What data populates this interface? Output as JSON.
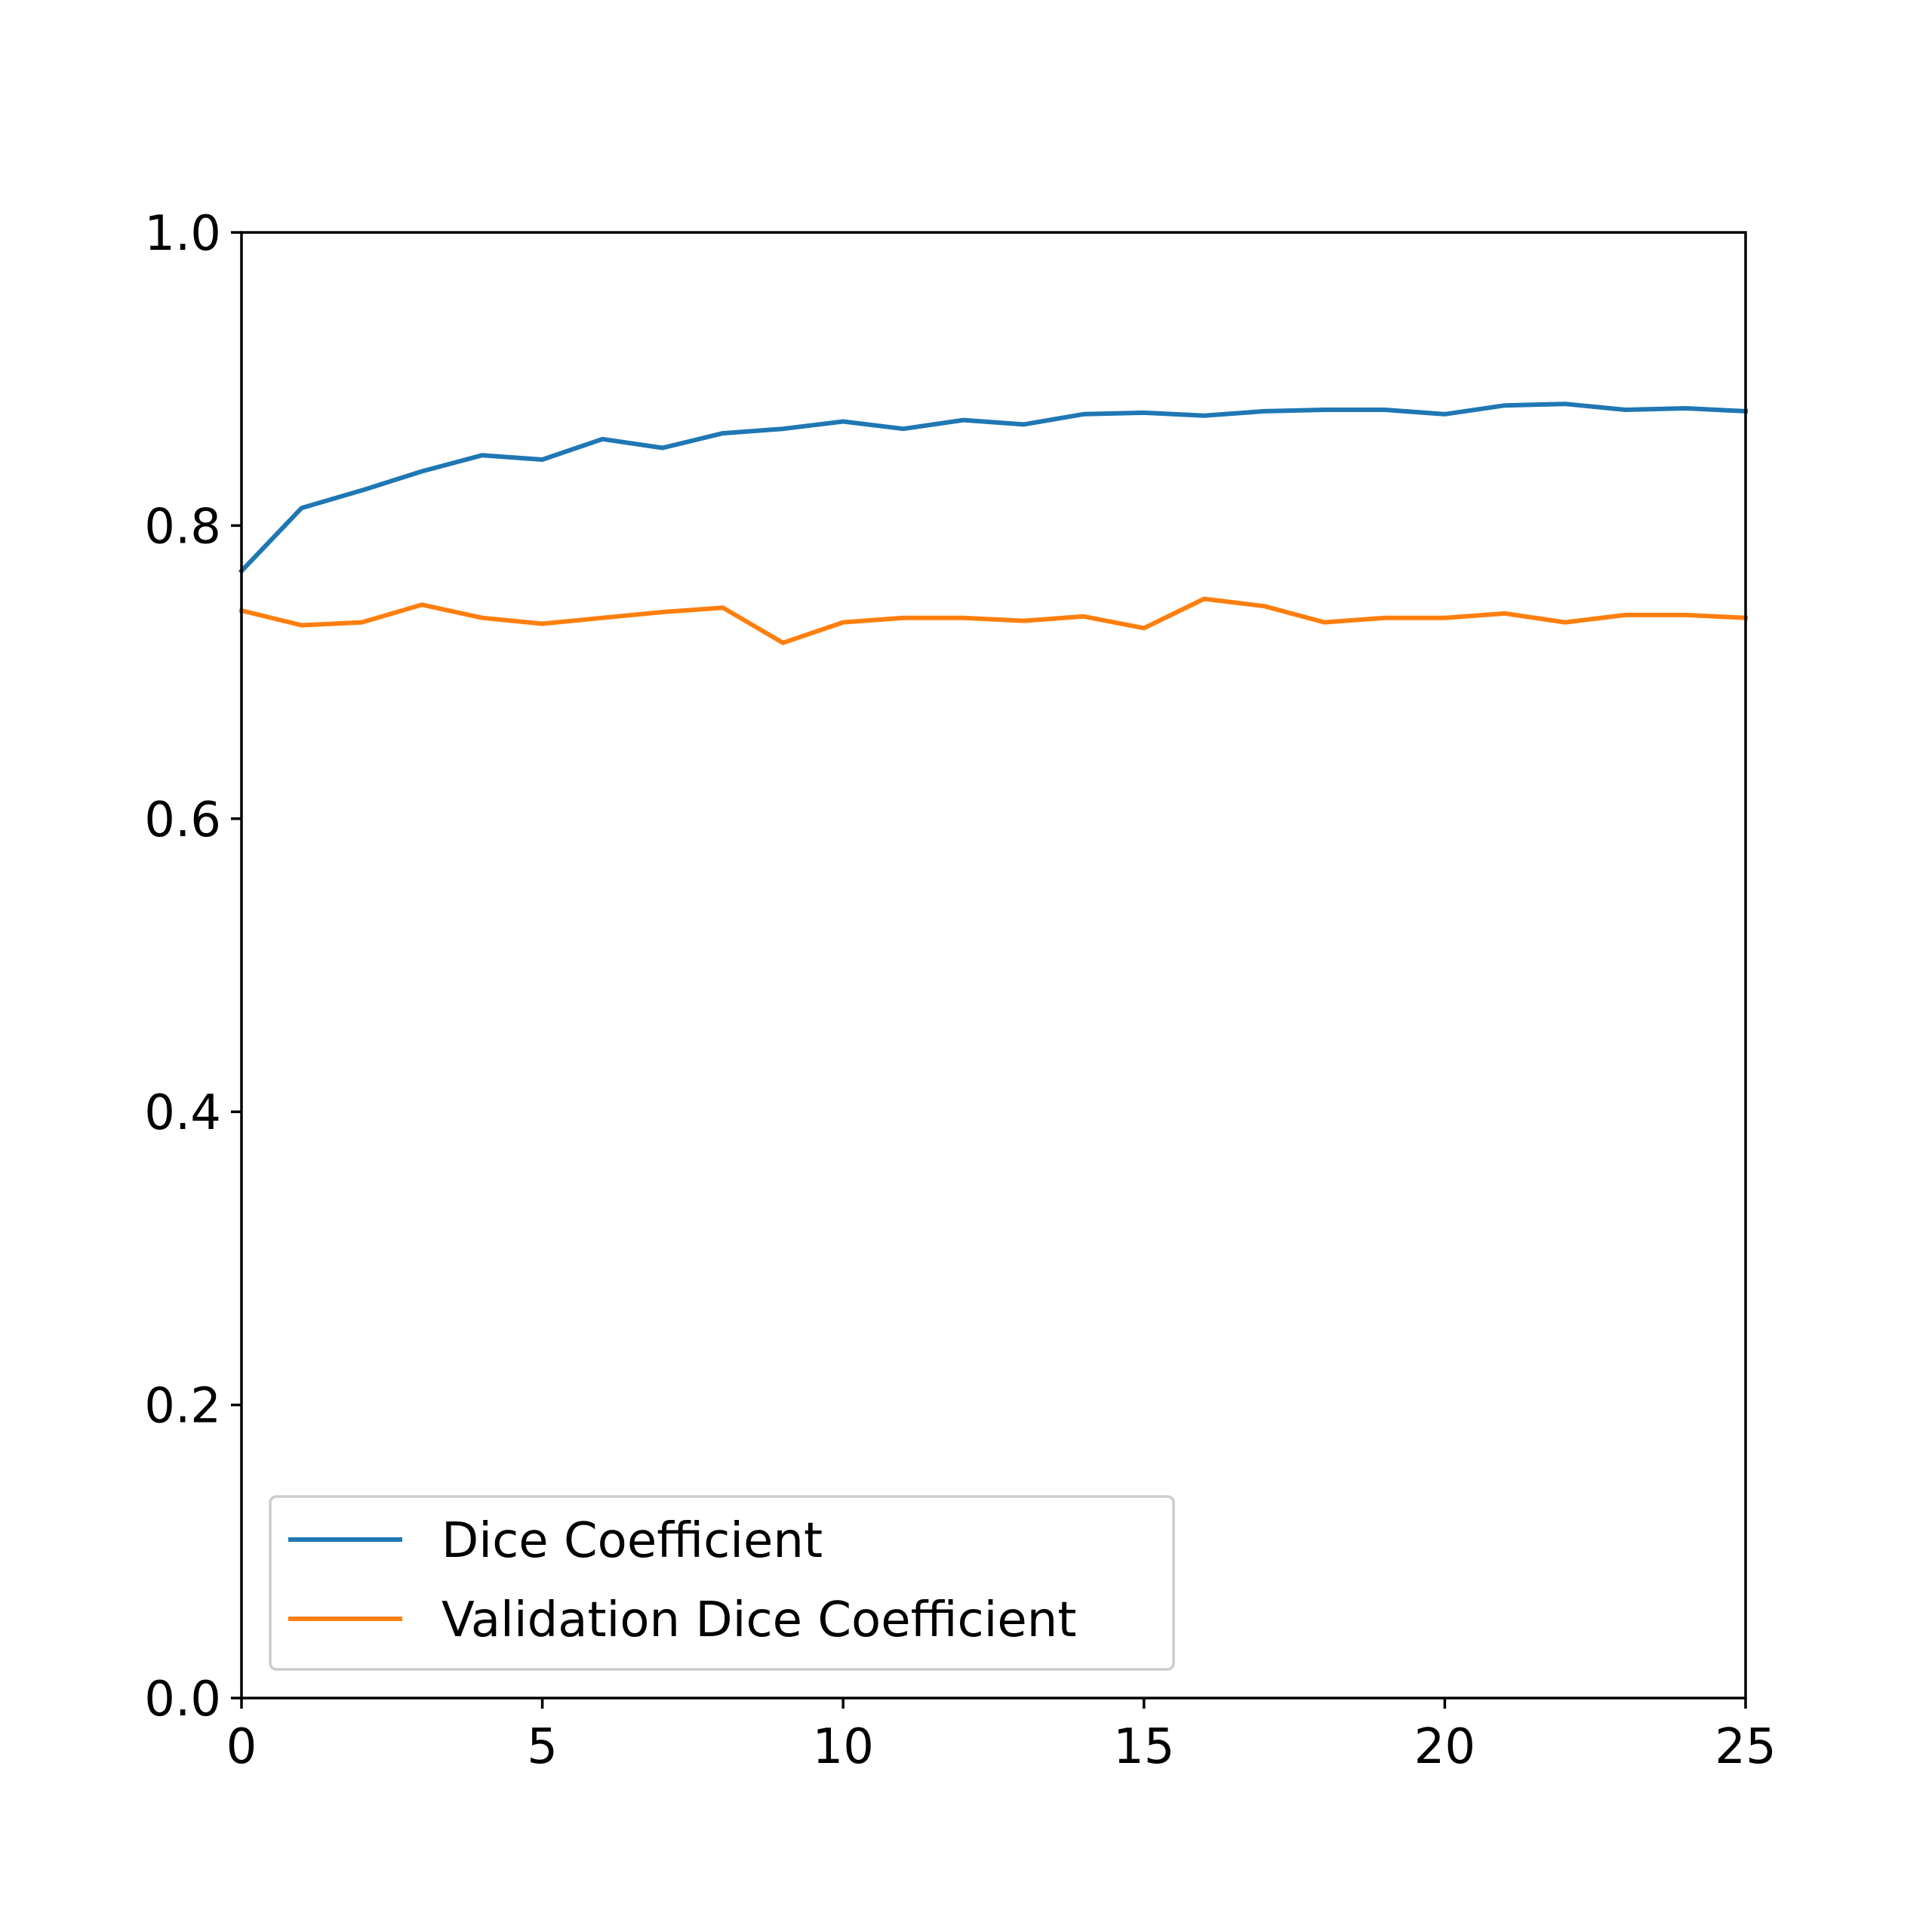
{
  "chart_data": {
    "type": "line",
    "title": "",
    "xlabel": "",
    "ylabel": "",
    "xlim": [
      0,
      25
    ],
    "ylim": [
      0.0,
      1.0
    ],
    "xticks": [
      "0",
      "5",
      "10",
      "15",
      "20",
      "25"
    ],
    "yticks": [
      "0.0",
      "0.2",
      "0.4",
      "0.6",
      "0.8",
      "1.0"
    ],
    "grid": false,
    "legend_position": "lower-left",
    "x": [
      0,
      1,
      2,
      3,
      4,
      5,
      6,
      7,
      8,
      9,
      10,
      11,
      12,
      13,
      14,
      15,
      16,
      17,
      18,
      19,
      20,
      21,
      22,
      23,
      24,
      25
    ],
    "series": [
      {
        "name": "Dice Coefficient",
        "color": "#1f77b4",
        "values": [
          0.769,
          0.812,
          0.824,
          0.837,
          0.848,
          0.845,
          0.859,
          0.853,
          0.863,
          0.866,
          0.871,
          0.866,
          0.872,
          0.869,
          0.876,
          0.877,
          0.875,
          0.878,
          0.879,
          0.879,
          0.876,
          0.882,
          0.883,
          0.879,
          0.88,
          0.878
        ]
      },
      {
        "name": "Validation Dice Coefficient",
        "color": "#ff7f0e",
        "values": [
          0.742,
          0.732,
          0.734,
          0.746,
          0.737,
          0.733,
          0.737,
          0.741,
          0.744,
          0.72,
          0.734,
          0.737,
          0.737,
          0.735,
          0.738,
          0.73,
          0.75,
          0.745,
          0.734,
          0.737,
          0.737,
          0.74,
          0.734,
          0.739,
          0.739,
          0.737
        ]
      }
    ]
  }
}
